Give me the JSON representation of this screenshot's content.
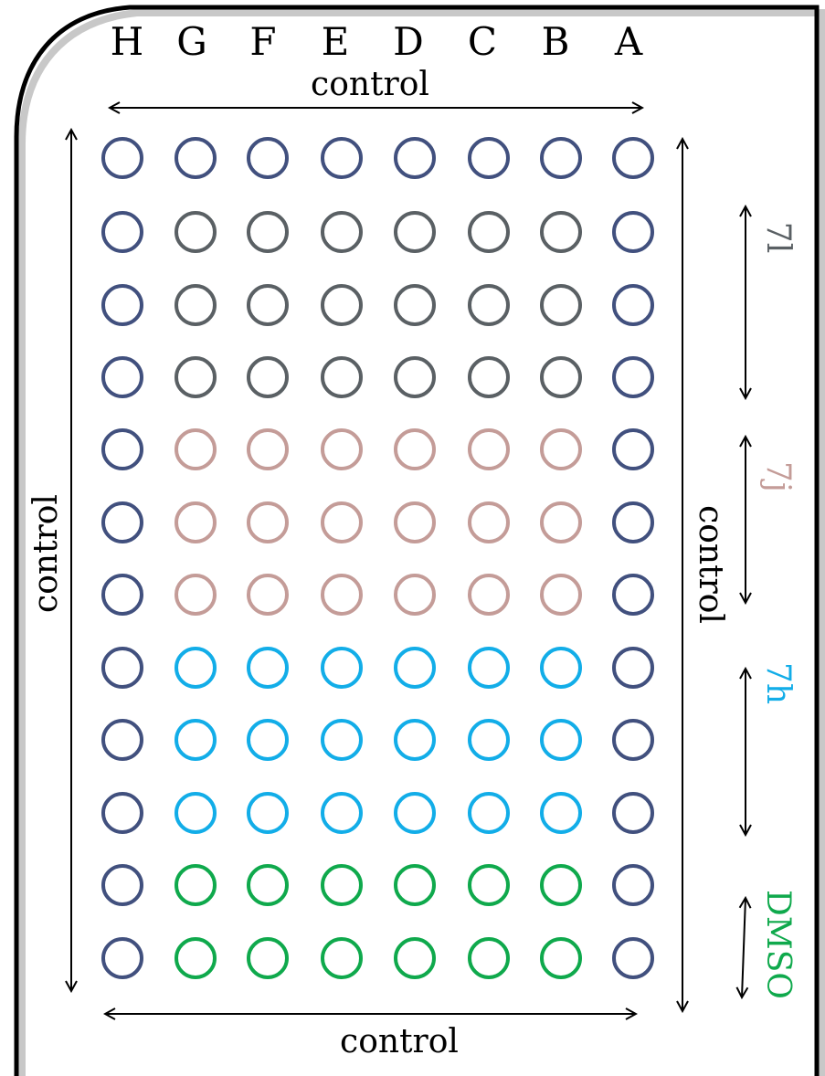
{
  "column_headers": [
    "H",
    "G",
    "F",
    "E",
    "D",
    "C",
    "B",
    "A"
  ],
  "control_top_label": "control",
  "control_bottom_label": "control",
  "control_left_label": "control",
  "control_right_label": "control",
  "rows": [
    [
      "control",
      "control",
      "control",
      "control",
      "control",
      "control",
      "control",
      "control"
    ],
    [
      "control",
      "7l",
      "7l",
      "7l",
      "7l",
      "7l",
      "7l",
      "control"
    ],
    [
      "control",
      "7l",
      "7l",
      "7l",
      "7l",
      "7l",
      "7l",
      "control"
    ],
    [
      "control",
      "7l",
      "7l",
      "7l",
      "7l",
      "7l",
      "7l",
      "control"
    ],
    [
      "control",
      "7j",
      "7j",
      "7j",
      "7j",
      "7j",
      "7j",
      "control"
    ],
    [
      "control",
      "7j",
      "7j",
      "7j",
      "7j",
      "7j",
      "7j",
      "control"
    ],
    [
      "control",
      "7j",
      "7j",
      "7j",
      "7j",
      "7j",
      "7j",
      "control"
    ],
    [
      "control",
      "7h",
      "7h",
      "7h",
      "7h",
      "7h",
      "7h",
      "control"
    ],
    [
      "control",
      "7h",
      "7h",
      "7h",
      "7h",
      "7h",
      "7h",
      "control"
    ],
    [
      "control",
      "7h",
      "7h",
      "7h",
      "7h",
      "7h",
      "7h",
      "control"
    ],
    [
      "control",
      "DMSO",
      "DMSO",
      "DMSO",
      "DMSO",
      "DMSO",
      "DMSO",
      "control"
    ],
    [
      "control",
      "DMSO",
      "DMSO",
      "DMSO",
      "DMSO",
      "DMSO",
      "DMSO",
      "control"
    ]
  ],
  "groups": [
    {
      "label": "7l",
      "color": "#5a6064"
    },
    {
      "label": "7j",
      "color": "#c49c98"
    },
    {
      "label": "7h",
      "color": "#12ade8"
    },
    {
      "label": "DMSO",
      "color": "#0fa94c"
    }
  ],
  "colors": {
    "control": "#41507e",
    "7l": "#5a6064",
    "7j": "#c49c98",
    "7h": "#12ade8",
    "DMSO": "#0fa94c"
  }
}
